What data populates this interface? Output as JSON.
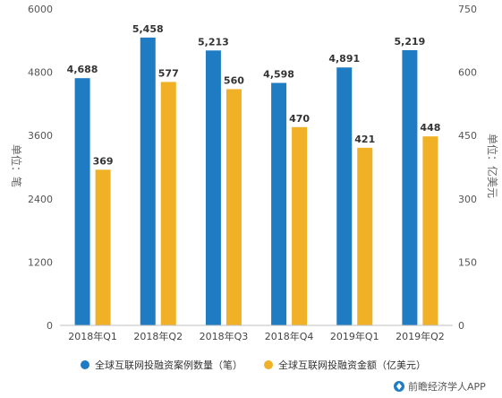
{
  "chart_data": {
    "type": "bar",
    "categories": [
      "2018年Q1",
      "2018年Q2",
      "2018年Q3",
      "2018年Q4",
      "2019年Q1",
      "2019年Q2"
    ],
    "series": [
      {
        "name": "全球互联网投融资案例数量（笔）",
        "axis": "left",
        "color": "#1f7cc3",
        "values": [
          4688,
          5458,
          5213,
          4598,
          4891,
          5219
        ],
        "labels": [
          "4,688",
          "5,458",
          "5,213",
          "4,598",
          "4,891",
          "5,219"
        ]
      },
      {
        "name": "全球互联网投融资金额（亿美元）",
        "axis": "right",
        "color": "#f0b127",
        "values": [
          369,
          577,
          560,
          470,
          421,
          448
        ],
        "labels": [
          "369",
          "577",
          "560",
          "470",
          "421",
          "448"
        ]
      }
    ],
    "ylabel": "单位：笔",
    "ylabel_right": "单位：亿美元",
    "ylim": [
      0,
      6000
    ],
    "ylim_right": [
      0,
      750
    ],
    "yticks": [
      "0",
      "1200",
      "2400",
      "3600",
      "4800",
      "6000"
    ],
    "yticks_right": [
      "0",
      "150",
      "300",
      "450",
      "600",
      "750"
    ],
    "grid": false,
    "legend_position": "bottom"
  },
  "watermark": "前瞻经济学人APP"
}
